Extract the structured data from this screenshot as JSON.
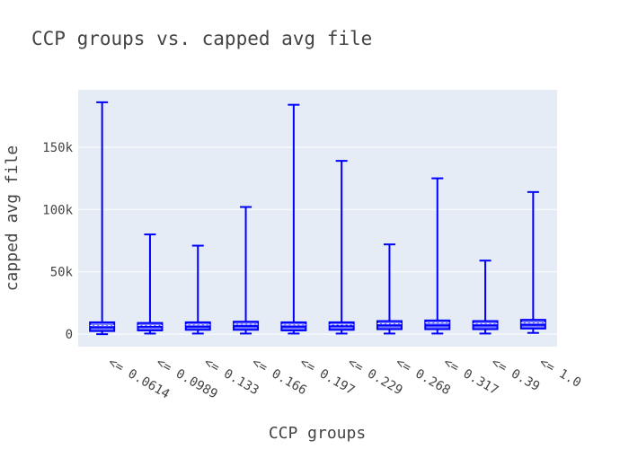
{
  "chart_data": {
    "type": "box",
    "title": "CCP groups vs. capped avg file",
    "xlabel": "CCP groups",
    "ylabel": "capped avg file",
    "ylim": [
      -10000,
      196000
    ],
    "y_ticks": [
      0,
      50000,
      100000,
      150000
    ],
    "y_tick_labels": [
      "0",
      "50k",
      "100k",
      "150k"
    ],
    "grid": true,
    "colors": {
      "plot_bg": "#E5ECF6",
      "box_fill": "#0000ff",
      "box_line": "#0000ff",
      "grid": "#ffffff"
    },
    "categories": [
      "<= 0.0614",
      "<= 0.0989",
      "<= 0.133",
      "<= 0.166",
      "<= 0.197",
      "<= 0.229",
      "<= 0.268",
      "<= 0.317",
      "<= 0.39",
      "<= 1.0"
    ],
    "boxes": [
      {
        "min": 0,
        "q1": 2500,
        "median": 5500,
        "mean": 7000,
        "q3": 9500,
        "max": 186000
      },
      {
        "min": 500,
        "q1": 3000,
        "median": 6000,
        "mean": 7000,
        "q3": 9000,
        "max": 80000
      },
      {
        "min": 500,
        "q1": 3500,
        "median": 6000,
        "mean": 7500,
        "q3": 9500,
        "max": 71000
      },
      {
        "min": 500,
        "q1": 3500,
        "median": 6500,
        "mean": 8000,
        "q3": 10000,
        "max": 102000
      },
      {
        "min": 500,
        "q1": 3000,
        "median": 6000,
        "mean": 7500,
        "q3": 9500,
        "max": 184000
      },
      {
        "min": 500,
        "q1": 3500,
        "median": 6500,
        "mean": 7500,
        "q3": 9500,
        "max": 139000
      },
      {
        "min": 500,
        "q1": 4000,
        "median": 7000,
        "mean": 8500,
        "q3": 10500,
        "max": 72000
      },
      {
        "min": 500,
        "q1": 4000,
        "median": 7000,
        "mean": 9000,
        "q3": 11000,
        "max": 125000
      },
      {
        "min": 500,
        "q1": 4000,
        "median": 7000,
        "mean": 8500,
        "q3": 10500,
        "max": 59000
      },
      {
        "min": 1000,
        "q1": 4500,
        "median": 7500,
        "mean": 9000,
        "q3": 11500,
        "max": 114000
      }
    ]
  }
}
